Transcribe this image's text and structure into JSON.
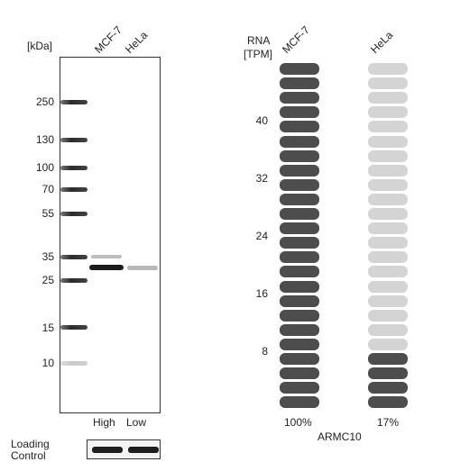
{
  "blot": {
    "unit_label": "[kDa]",
    "lanes": [
      "MCF-7",
      "HeLa"
    ],
    "markers": [
      "250",
      "130",
      "100",
      "70",
      "55",
      "35",
      "25",
      "15",
      "10"
    ],
    "expression": [
      "High",
      "Low"
    ],
    "loading_control": [
      "Loading",
      "Control"
    ]
  },
  "rna": {
    "header": [
      "RNA",
      "[TPM]"
    ],
    "lanes": [
      "MCF-7",
      "HeLa"
    ],
    "ticks": [
      "40",
      "32",
      "24",
      "16",
      "8"
    ],
    "percent": [
      "100%",
      "17%"
    ],
    "gene": "ARMC10",
    "total_cells": 24,
    "lane_filled_fraction": [
      1.0,
      0.17
    ],
    "colors": {
      "filled": "#4d4d4d",
      "empty": "#d4d4d4"
    }
  }
}
